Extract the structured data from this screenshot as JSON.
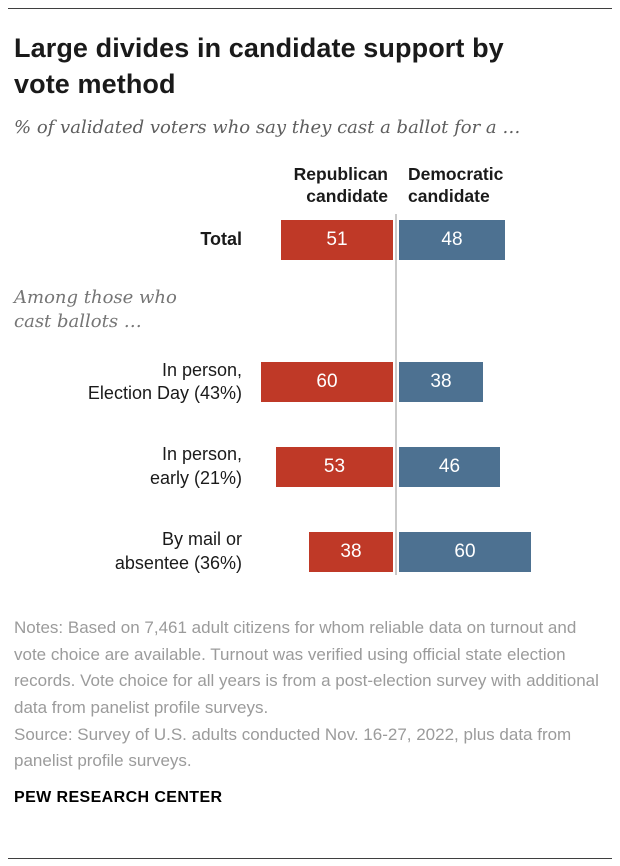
{
  "header": {
    "title": "Large divides in candidate support by\nvote method",
    "subtitle": "% of validated voters who say they cast a ballot for a …"
  },
  "chart_data": {
    "type": "bar",
    "layout": "diverging-horizontal",
    "value_labels": "inside-white",
    "categories": [
      "Total",
      "In person,\nElection Day (43%)",
      "In person,\nearly (21%)",
      "By mail or\nabsentee (36%)"
    ],
    "series": [
      {
        "name": "Republican\ncandidate",
        "side": "left",
        "color": "#bf3927",
        "values": [
          51,
          60,
          53,
          38
        ]
      },
      {
        "name": "Democratic\ncandidate",
        "side": "right",
        "color": "#4d7191",
        "values": [
          48,
          38,
          46,
          60
        ]
      }
    ],
    "group_note": "Among those who\ncast ballots …",
    "group_note_position": "between Total row and vote-method rows",
    "center_divider_color": "#c9c9c9"
  },
  "notes": {
    "note": "Notes: Based on 7,461 adult citizens for whom reliable data on turnout and vote choice are available. Turnout was verified using official state election records. Vote choice for all years is from a post-election survey with additional data from panelist profile surveys.",
    "source": "Source: Survey of U.S. adults conducted Nov. 16-27, 2022, plus data from panelist profile surveys."
  },
  "footer": {
    "brand": "PEW RESEARCH CENTER"
  }
}
